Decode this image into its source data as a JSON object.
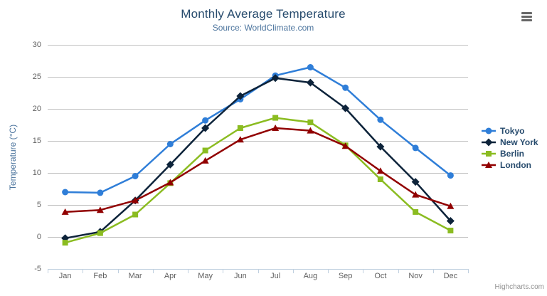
{
  "chart": {
    "title": "Monthly Average Temperature",
    "subtitle": "Source: WorldClimate.com",
    "credits": "Highcharts.com",
    "export_menu_icon": "hamburger-icon"
  },
  "chart_data": {
    "type": "line",
    "title": "Monthly Average Temperature",
    "subtitle": "Source: WorldClimate.com",
    "categories": [
      "Jan",
      "Feb",
      "Mar",
      "Apr",
      "May",
      "Jun",
      "Jul",
      "Aug",
      "Sep",
      "Oct",
      "Nov",
      "Dec"
    ],
    "series": [
      {
        "name": "Tokyo",
        "color": "#2f7ed8",
        "marker": "circle",
        "values": [
          7.0,
          6.9,
          9.5,
          14.5,
          18.2,
          21.5,
          25.2,
          26.5,
          23.3,
          18.3,
          13.9,
          9.6
        ]
      },
      {
        "name": "New York",
        "color": "#0d233a",
        "marker": "diamond",
        "values": [
          -0.2,
          0.8,
          5.7,
          11.3,
          17.0,
          22.0,
          24.8,
          24.1,
          20.1,
          14.1,
          8.6,
          2.5
        ]
      },
      {
        "name": "Berlin",
        "color": "#8bbc21",
        "marker": "square",
        "values": [
          -0.9,
          0.6,
          3.5,
          8.4,
          13.5,
          17.0,
          18.6,
          17.9,
          14.3,
          9.0,
          3.9,
          1.0
        ]
      },
      {
        "name": "London",
        "color": "#910000",
        "marker": "triangle",
        "values": [
          3.9,
          4.2,
          5.7,
          8.5,
          11.9,
          15.2,
          17.0,
          16.6,
          14.2,
          10.3,
          6.6,
          4.8
        ]
      }
    ],
    "xlabel": "",
    "ylabel": "Temperature (°C)",
    "ylim": [
      -5,
      30
    ],
    "yticks": [
      -5,
      0,
      5,
      10,
      15,
      20,
      25,
      30
    ],
    "grid": true,
    "legend_position": "right"
  },
  "colors": {
    "title": "#274b6d",
    "subtitle": "#4d759e",
    "axis_title": "#4d759e",
    "tick_label": "#606060",
    "grid_line": "#c0c0c0",
    "axis_line": "#c0d0e0",
    "legend_text": "#274b6d",
    "credits": "#909090",
    "export_icon": "#666666"
  }
}
